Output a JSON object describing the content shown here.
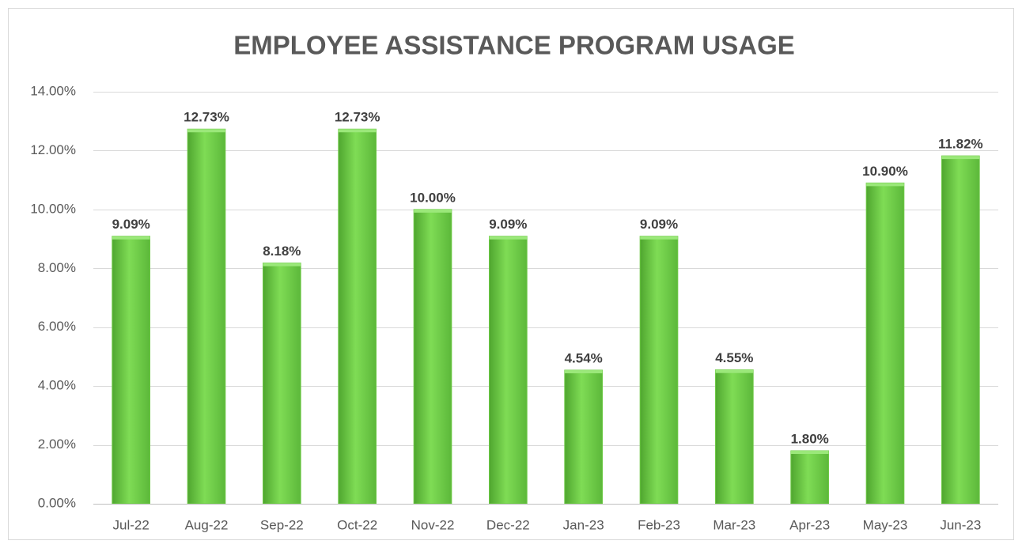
{
  "chart_data": {
    "type": "bar",
    "title": "EMPLOYEE ASSISTANCE PROGRAM USAGE",
    "categories": [
      "Jul-22",
      "Aug-22",
      "Sep-22",
      "Oct-22",
      "Nov-22",
      "Dec-22",
      "Jan-23",
      "Feb-23",
      "Mar-23",
      "Apr-23",
      "May-23",
      "Jun-23"
    ],
    "values": [
      9.09,
      12.73,
      8.18,
      12.73,
      10.0,
      9.09,
      4.54,
      9.09,
      4.55,
      1.8,
      10.9,
      11.82
    ],
    "value_labels": [
      "9.09%",
      "12.73%",
      "8.18%",
      "12.73%",
      "10.00%",
      "9.09%",
      "4.54%",
      "9.09%",
      "4.55%",
      "1.80%",
      "10.90%",
      "11.82%"
    ],
    "color": "#6cc845",
    "ylim": [
      0,
      14
    ],
    "yticks": [
      {
        "value": 0,
        "label": "0.00%"
      },
      {
        "value": 2,
        "label": "2.00%"
      },
      {
        "value": 4,
        "label": "4.00%"
      },
      {
        "value": 6,
        "label": "6.00%"
      },
      {
        "value": 8,
        "label": "8.00%"
      },
      {
        "value": 10,
        "label": "10.00%"
      },
      {
        "value": 12,
        "label": "12.00%"
      },
      {
        "value": 14,
        "label": "14.00%"
      }
    ],
    "grid": true
  }
}
